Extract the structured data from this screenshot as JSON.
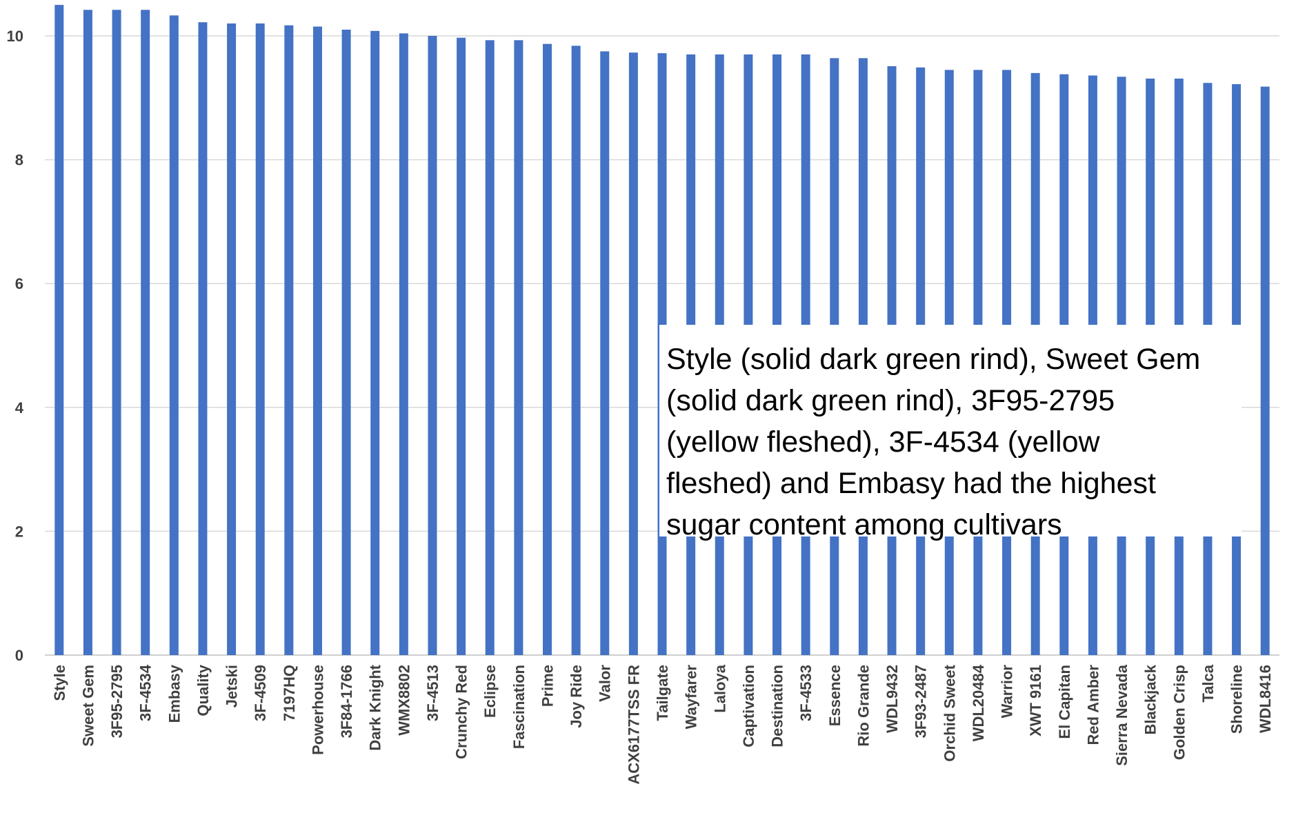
{
  "chart_data": {
    "type": "bar",
    "title": "",
    "xlabel": "",
    "ylabel": "",
    "ylim": [
      0,
      10.5
    ],
    "yticks": [
      0,
      2,
      4,
      6,
      8,
      10
    ],
    "grid": "horizontal",
    "bar_color": "#4472C4",
    "categories": [
      "Style",
      "Sweet Gem",
      "3F95-2795",
      "3F-4534",
      "Embasy",
      "Quality",
      "Jetski",
      "3F-4509",
      "7197HQ",
      "Powerhouse",
      "3F84-1766",
      "Dark Knight",
      "WMX8802",
      "3F-4513",
      "Crunchy Red",
      "Eclipse",
      "Fascination",
      "Prime",
      "Joy Ride",
      "Valor",
      "ACX6177TSS FR",
      "Tailgate",
      "Wayfarer",
      "Laloya",
      "Captivation",
      "Destination",
      "3F-4533",
      "Essence",
      "Rio Grande",
      "WDL9432",
      "3F93-2487",
      "Orchid Sweet",
      "WDL20484",
      "Warrior",
      "XWT 9161",
      "El Capitan",
      "Red Amber",
      "Sierra Nevada",
      "Blackjack",
      "Golden Crisp",
      "Talca",
      "Shoreline",
      "WDL8416"
    ],
    "values": [
      10.5,
      10.42,
      10.42,
      10.42,
      10.33,
      10.22,
      10.2,
      10.2,
      10.17,
      10.15,
      10.1,
      10.08,
      10.04,
      10.0,
      9.97,
      9.93,
      9.93,
      9.87,
      9.84,
      9.75,
      9.73,
      9.72,
      9.7,
      9.7,
      9.7,
      9.7,
      9.7,
      9.64,
      9.64,
      9.51,
      9.49,
      9.45,
      9.45,
      9.45,
      9.4,
      9.38,
      9.36,
      9.34,
      9.31,
      9.31,
      9.24,
      9.22,
      9.18
    ],
    "annotation": {
      "lines": [
        "Style (solid dark green rind), Sweet Gem",
        "(solid dark green rind), 3F95-2795",
        "(yellow fleshed), 3F-4534  (yellow",
        "fleshed) and Embasy had the highest",
        "sugar content among cultivars"
      ]
    }
  }
}
